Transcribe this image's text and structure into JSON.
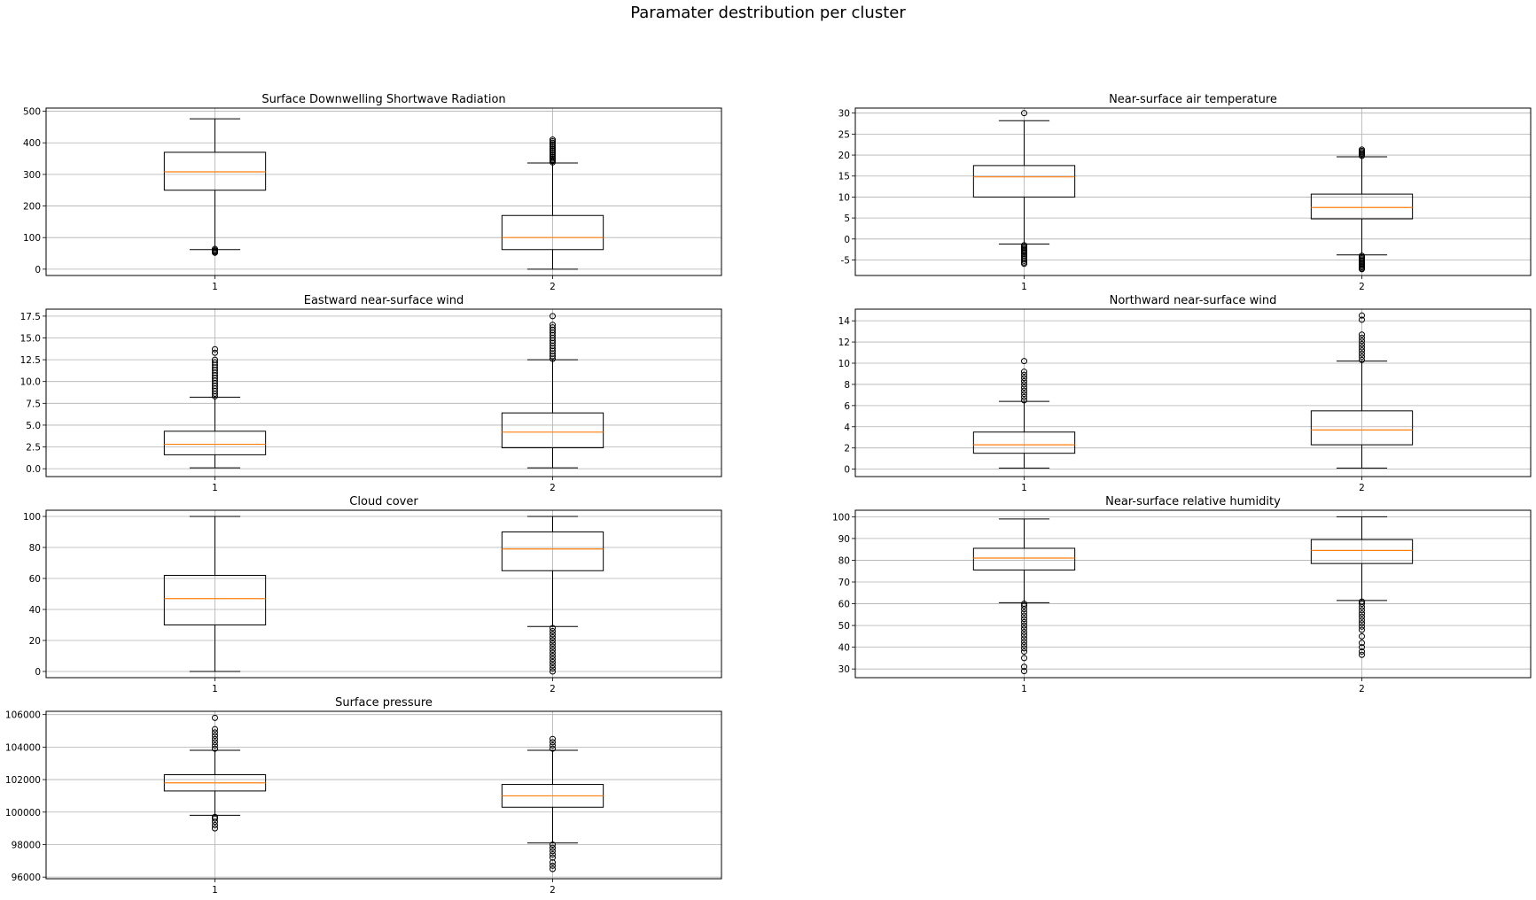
{
  "suptitle": "Paramater destribution per cluster",
  "chart_data": [
    {
      "type": "boxplot",
      "title": "Surface Downwelling Shortwave Radiation",
      "categories": [
        "1",
        "2"
      ],
      "ylim": [
        -20,
        510
      ],
      "yticks": [
        0,
        100,
        200,
        300,
        400,
        500
      ],
      "grid": true,
      "boxes": [
        {
          "whisker_low": 62,
          "q1": 250,
          "median": 308,
          "q3": 370,
          "whisker_high": 476,
          "fliers": [
            52,
            55,
            58,
            60,
            64
          ]
        },
        {
          "whisker_low": 0,
          "q1": 62,
          "median": 100,
          "q3": 170,
          "whisker_high": 336,
          "fliers": [
            338,
            342,
            346,
            350,
            355,
            360,
            365,
            370,
            375,
            380,
            385,
            390,
            395,
            400,
            405,
            410
          ]
        }
      ]
    },
    {
      "type": "boxplot",
      "title": "Near-surface air temperature",
      "categories": [
        "1",
        "2"
      ],
      "ylim": [
        -8.7,
        31.2
      ],
      "yticks": [
        -5,
        0,
        5,
        10,
        15,
        20,
        25,
        30
      ],
      "grid": true,
      "boxes": [
        {
          "whisker_low": -1.2,
          "q1": 10,
          "median": 14.8,
          "q3": 17.5,
          "whisker_high": 28.2,
          "fliers": [
            -1.5,
            -1.8,
            -2.1,
            -2.4,
            -2.7,
            -3,
            -3.3,
            -3.6,
            -4,
            -4.4,
            -4.8,
            -5.2,
            -5.6,
            -5.9,
            30
          ]
        },
        {
          "whisker_low": -3.8,
          "q1": 4.8,
          "median": 7.5,
          "q3": 10.7,
          "whisker_high": 19.6,
          "fliers": [
            -4,
            -4.3,
            -4.6,
            -4.9,
            -5.2,
            -5.5,
            -5.8,
            -6.1,
            -6.4,
            -6.7,
            -7,
            -7.2,
            19.8,
            20.1,
            20.4,
            20.7,
            21,
            21.3
          ]
        }
      ]
    },
    {
      "type": "boxplot",
      "title": "Eastward near-surface wind",
      "categories": [
        "1",
        "2"
      ],
      "ylim": [
        -0.9,
        18.3
      ],
      "yticks": [
        0.0,
        2.5,
        5.0,
        7.5,
        10.0,
        12.5,
        15.0,
        17.5
      ],
      "ytick_labels": [
        "0.0",
        "2.5",
        "5.0",
        "7.5",
        "10.0",
        "12.5",
        "15.0",
        "17.5"
      ],
      "grid": true,
      "boxes": [
        {
          "whisker_low": 0.1,
          "q1": 1.6,
          "median": 2.8,
          "q3": 4.3,
          "whisker_high": 8.2,
          "fliers": [
            8.3,
            8.6,
            8.9,
            9.2,
            9.5,
            9.8,
            10.1,
            10.4,
            10.7,
            11,
            11.3,
            11.6,
            11.9,
            12.2,
            12.5,
            13.3,
            13.7
          ]
        },
        {
          "whisker_low": 0.1,
          "q1": 2.4,
          "median": 4.2,
          "q3": 6.4,
          "whisker_high": 12.5,
          "fliers": [
            12.6,
            12.9,
            13.2,
            13.5,
            13.8,
            14.1,
            14.4,
            14.7,
            15,
            15.3,
            15.6,
            15.9,
            16.2,
            16.5,
            17.5
          ]
        }
      ]
    },
    {
      "type": "boxplot",
      "title": "Northward near-surface wind",
      "categories": [
        "1",
        "2"
      ],
      "ylim": [
        -0.7,
        15.1
      ],
      "yticks": [
        0,
        2,
        4,
        6,
        8,
        10,
        12,
        14
      ],
      "grid": true,
      "boxes": [
        {
          "whisker_low": 0.1,
          "q1": 1.5,
          "median": 2.3,
          "q3": 3.5,
          "whisker_high": 6.4,
          "fliers": [
            6.5,
            6.8,
            7.1,
            7.4,
            7.7,
            8,
            8.3,
            8.6,
            8.9,
            9.2,
            10.2
          ]
        },
        {
          "whisker_low": 0.1,
          "q1": 2.3,
          "median": 3.7,
          "q3": 5.5,
          "whisker_high": 10.2,
          "fliers": [
            10.3,
            10.6,
            10.9,
            11.2,
            11.5,
            11.8,
            12.1,
            12.4,
            12.7,
            14.1,
            14.5
          ]
        }
      ]
    },
    {
      "type": "boxplot",
      "title": "Cloud cover",
      "categories": [
        "1",
        "2"
      ],
      "ylim": [
        -4,
        104
      ],
      "yticks": [
        0,
        20,
        40,
        60,
        80,
        100
      ],
      "grid": true,
      "boxes": [
        {
          "whisker_low": 0,
          "q1": 30,
          "median": 47,
          "q3": 62,
          "whisker_high": 100,
          "fliers": []
        },
        {
          "whisker_low": 29,
          "q1": 65,
          "median": 79,
          "q3": 90,
          "whisker_high": 100,
          "fliers": [
            0,
            2,
            4,
            6,
            8,
            10,
            12,
            14,
            16,
            18,
            20,
            22,
            24,
            26,
            28
          ]
        }
      ]
    },
    {
      "type": "boxplot",
      "title": "Near-surface relative humidity",
      "categories": [
        "1",
        "2"
      ],
      "ylim": [
        26,
        103
      ],
      "yticks": [
        30,
        40,
        50,
        60,
        70,
        80,
        90,
        100
      ],
      "grid": true,
      "boxes": [
        {
          "whisker_low": 60.5,
          "q1": 75.5,
          "median": 81,
          "q3": 85.5,
          "whisker_high": 99,
          "fliers": [
            29,
            31,
            35,
            38,
            39.5,
            41,
            42.5,
            44,
            45.5,
            47,
            48.5,
            50,
            51.5,
            53,
            54.5,
            56,
            57.5,
            59,
            60
          ]
        },
        {
          "whisker_low": 61.5,
          "q1": 78.5,
          "median": 84.5,
          "q3": 89.5,
          "whisker_high": 100,
          "fliers": [
            36.5,
            38,
            40,
            42,
            45,
            48,
            49.5,
            51,
            52.5,
            54,
            55.5,
            57,
            58.5,
            60,
            61
          ]
        }
      ]
    },
    {
      "type": "boxplot",
      "title": "Surface pressure",
      "categories": [
        "1",
        "2"
      ],
      "ylim": [
        95900,
        106200
      ],
      "yticks": [
        96000,
        98000,
        100000,
        102000,
        104000,
        106000
      ],
      "grid": true,
      "boxes": [
        {
          "whisker_low": 99800,
          "q1": 101300,
          "median": 101800,
          "q3": 102300,
          "whisker_high": 103800,
          "fliers": [
            99000,
            99200,
            99400,
            99600,
            99700,
            103900,
            104100,
            104300,
            104500,
            104700,
            104900,
            105100,
            105800
          ]
        },
        {
          "whisker_low": 98100,
          "q1": 100300,
          "median": 101000,
          "q3": 101700,
          "whisker_high": 103800,
          "fliers": [
            96500,
            96700,
            96900,
            97200,
            97400,
            97600,
            97800,
            98000,
            103900,
            104100,
            104300,
            104500
          ]
        }
      ]
    }
  ]
}
